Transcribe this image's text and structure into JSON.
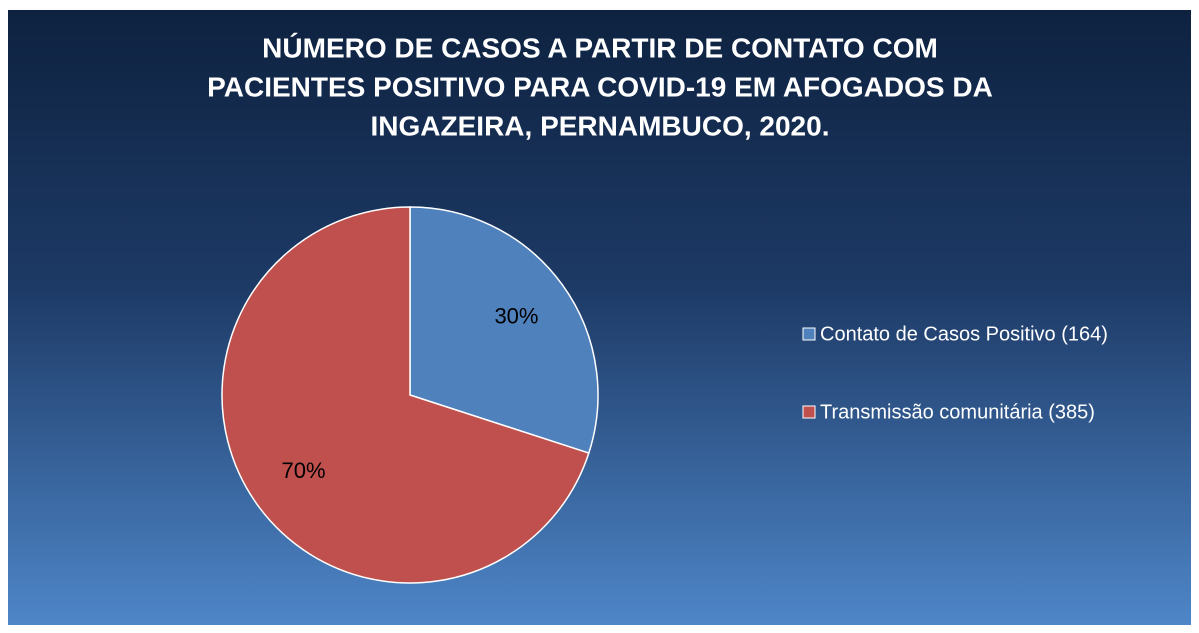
{
  "chart_data": {
    "type": "pie",
    "title": [
      "NÚMERO DE CASOS A PARTIR DE CONTATO COM",
      "PACIENTES POSITIVO PARA COVID-19 EM AFOGADOS DA",
      "INGAZEIRA, PERNAMBUCO, 2020."
    ],
    "categories": [
      "Contato de Casos Positivo (164)",
      "Transmissão comunitária (385)"
    ],
    "values": [
      30,
      70
    ],
    "value_labels": [
      "30%",
      "70%"
    ],
    "colors": [
      "#4f81bd",
      "#c0504d"
    ],
    "legend": "right"
  }
}
